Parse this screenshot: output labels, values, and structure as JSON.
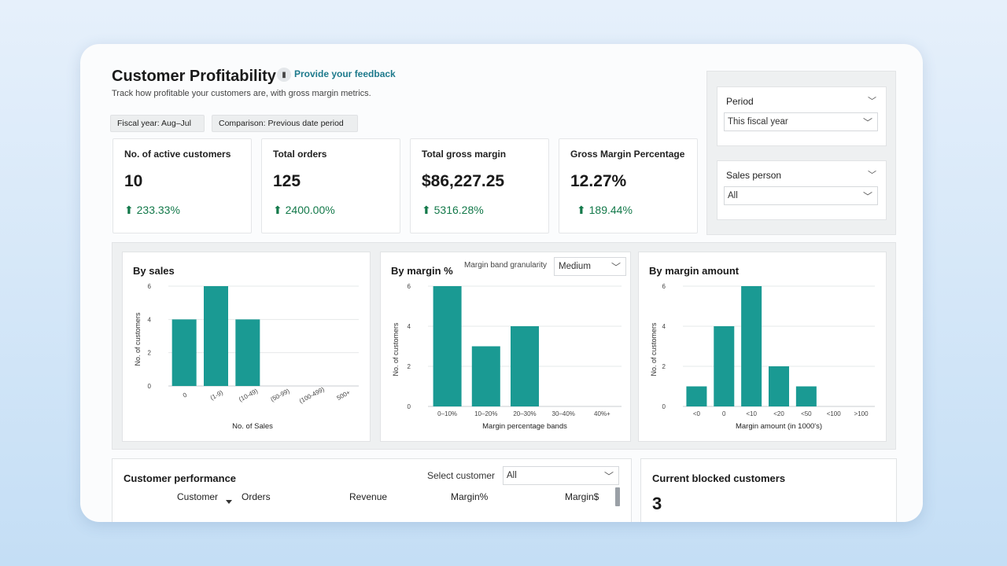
{
  "header": {
    "title": "Customer Profitability",
    "feedback_icon": "feedback-icon",
    "feedback_link": "Provide your feedback",
    "subtitle": "Track how profitable your customers are, with gross margin metrics."
  },
  "chips": {
    "fiscal_year": "Fiscal year: Aug–Jul",
    "comparison": "Comparison: Previous date period"
  },
  "kpis": [
    {
      "label": "No. of active customers",
      "value": "10",
      "change": "⬆ 233.33%"
    },
    {
      "label": "Total orders",
      "value": "125",
      "change": "⬆ 2400.00%"
    },
    {
      "label": "Total gross margin",
      "value": "$86,227.25",
      "change": "⬆ 5316.28%"
    },
    {
      "label": "Gross Margin Percentage",
      "value": "12.27%",
      "change": "⬆ 189.44%"
    }
  ],
  "filters": {
    "period": {
      "label": "Period",
      "value": "This fiscal year"
    },
    "sales_person": {
      "label": "Sales person",
      "value": "All"
    }
  },
  "granularity": {
    "label": "Margin band granularity",
    "value": "Medium"
  },
  "colors": {
    "bar": "#1a9a93",
    "positive": "#13794a",
    "link": "#1e7a8c"
  },
  "chart_data": [
    {
      "type": "bar",
      "title": "By sales",
      "categories": [
        "0",
        "(1-9)",
        "(10-49)",
        "(50-99)",
        "(100-499)",
        "500+"
      ],
      "values": [
        4,
        6,
        4,
        0,
        0,
        0
      ],
      "xlabel": "No. of Sales",
      "ylabel": "No. of customers",
      "yticks": [
        "0",
        "2",
        "4",
        "6"
      ],
      "ylim": [
        0,
        6
      ]
    },
    {
      "type": "bar",
      "title": "By margin %",
      "categories": [
        "0–10%",
        "10–20%",
        "20–30%",
        "30–40%",
        "40%+"
      ],
      "values": [
        6,
        3,
        4,
        0,
        0
      ],
      "xlabel": "Margin percentage bands",
      "ylabel": "No. of customers",
      "yticks": [
        "0",
        "2",
        "4",
        "6"
      ],
      "ylim": [
        0,
        6
      ]
    },
    {
      "type": "bar",
      "title": "By margin amount",
      "categories": [
        "<0",
        "0",
        "<10",
        "<20",
        "<50",
        "<100",
        ">100"
      ],
      "values": [
        1,
        4,
        6,
        2,
        1,
        0,
        0
      ],
      "xlabel": "Margin amount (in 1000's)",
      "ylabel": "No. of customers",
      "yticks": [
        "0",
        "2",
        "4",
        "6"
      ],
      "ylim": [
        0,
        6
      ]
    }
  ],
  "performance": {
    "title": "Customer performance",
    "select_label": "Select customer",
    "select_value": "All",
    "columns": [
      "Customer",
      "Orders",
      "Revenue",
      "Margin%",
      "Margin$"
    ]
  },
  "blocked": {
    "title": "Current blocked customers",
    "value": "3"
  }
}
